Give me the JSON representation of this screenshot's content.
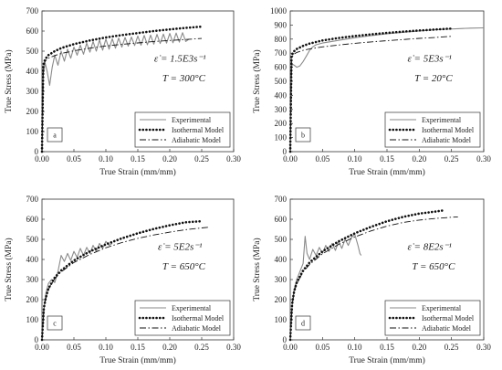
{
  "chart_data": [
    {
      "type": "line",
      "panel": "a",
      "xlabel": "True Strain (mm/mm)",
      "ylabel": "True Stress (MPa)",
      "xlim": [
        0,
        0.3
      ],
      "ylim": [
        0,
        700
      ],
      "xticks": [
        0,
        0.05,
        0.1,
        0.15,
        0.2,
        0.25,
        0.3
      ],
      "yticks": [
        0,
        100,
        200,
        300,
        400,
        500,
        600,
        700
      ],
      "xtick_labels": [
        "0.00",
        "0.05",
        "0.10",
        "0.15",
        "0.20",
        "0.25",
        "0.30"
      ],
      "ytick_labels": [
        "0",
        "100",
        "200",
        "300",
        "400",
        "500",
        "600",
        "700"
      ],
      "annotation_rate": "ε̇ = 1.5E3s⁻¹",
      "annotation_temp": "T = 300°C",
      "legend_position": "bottom-right",
      "series": [
        {
          "name": "Experimental",
          "style": "solid-gray",
          "x": [
            0,
            0.002,
            0.005,
            0.008,
            0.012,
            0.016,
            0.02,
            0.025,
            0.03,
            0.035,
            0.04,
            0.045,
            0.05,
            0.055,
            0.06,
            0.065,
            0.07,
            0.075,
            0.08,
            0.085,
            0.09,
            0.095,
            0.1,
            0.105,
            0.11,
            0.115,
            0.12,
            0.125,
            0.13,
            0.135,
            0.14,
            0.145,
            0.15,
            0.155,
            0.16,
            0.165,
            0.17,
            0.175,
            0.18,
            0.185,
            0.19,
            0.195,
            0.2,
            0.205,
            0.21,
            0.215,
            0.22,
            0.225,
            0.23
          ],
          "y": [
            0,
            390,
            440,
            400,
            330,
            420,
            480,
            430,
            500,
            450,
            510,
            465,
            520,
            480,
            530,
            485,
            540,
            495,
            548,
            500,
            555,
            505,
            560,
            510,
            562,
            515,
            565,
            520,
            568,
            525,
            570,
            528,
            575,
            530,
            578,
            532,
            580,
            535,
            583,
            538,
            585,
            540,
            588,
            542,
            590,
            545,
            592,
            548,
            560
          ]
        },
        {
          "name": "Isothermal Model",
          "style": "dotted",
          "x": [
            0,
            0.002,
            0.005,
            0.01,
            0.02,
            0.03,
            0.05,
            0.075,
            0.1,
            0.125,
            0.15,
            0.175,
            0.2,
            0.225,
            0.25
          ],
          "y": [
            0,
            430,
            460,
            480,
            500,
            515,
            535,
            553,
            568,
            580,
            590,
            600,
            608,
            616,
            622
          ]
        },
        {
          "name": "Adiabatic Model",
          "style": "dashdot",
          "x": [
            0,
            0.002,
            0.005,
            0.01,
            0.02,
            0.03,
            0.05,
            0.075,
            0.1,
            0.125,
            0.15,
            0.175,
            0.2,
            0.225,
            0.25
          ],
          "y": [
            0,
            425,
            450,
            465,
            478,
            488,
            502,
            515,
            526,
            534,
            541,
            548,
            553,
            558,
            563
          ]
        }
      ]
    },
    {
      "type": "line",
      "panel": "b",
      "xlabel": "True Strain (mm/mm)",
      "ylabel": "True Stress (MPa)",
      "xlim": [
        0,
        0.3
      ],
      "ylim": [
        0,
        1000
      ],
      "xticks": [
        0,
        0.05,
        0.1,
        0.15,
        0.2,
        0.25,
        0.3
      ],
      "yticks": [
        0,
        100,
        200,
        300,
        400,
        500,
        600,
        700,
        800,
        900,
        1000
      ],
      "xtick_labels": [
        "0.00",
        "0.05",
        "0.10",
        "0.15",
        "0.20",
        "0.25",
        "0.30"
      ],
      "ytick_labels": [
        "0",
        "100",
        "200",
        "300",
        "400",
        "500",
        "600",
        "700",
        "800",
        "900",
        "1000"
      ],
      "annotation_rate": "ε̇ = 5E3s⁻¹",
      "annotation_temp": "T = 20°C",
      "legend_position": "bottom-right",
      "series": [
        {
          "name": "Experimental",
          "style": "solid-gray",
          "x": [
            0,
            0.002,
            0.004,
            0.006,
            0.01,
            0.015,
            0.02,
            0.025,
            0.03,
            0.035,
            0.04,
            0.05,
            0.06,
            0.08,
            0.1,
            0.12,
            0.15,
            0.18,
            0.2,
            0.22,
            0.24,
            0.26,
            0.28,
            0.3
          ],
          "y": [
            0,
            610,
            620,
            615,
            600,
            610,
            640,
            680,
            720,
            745,
            760,
            772,
            780,
            795,
            810,
            822,
            838,
            850,
            858,
            865,
            870,
            874,
            878,
            880
          ]
        },
        {
          "name": "Isothermal Model",
          "style": "dotted",
          "x": [
            0,
            0.002,
            0.005,
            0.01,
            0.02,
            0.03,
            0.05,
            0.075,
            0.1,
            0.125,
            0.15,
            0.175,
            0.2,
            0.225,
            0.25
          ],
          "y": [
            0,
            680,
            710,
            730,
            752,
            768,
            790,
            808,
            822,
            834,
            844,
            853,
            861,
            868,
            875
          ]
        },
        {
          "name": "Adiabatic Model",
          "style": "dashdot",
          "x": [
            0,
            0.002,
            0.005,
            0.01,
            0.02,
            0.03,
            0.05,
            0.075,
            0.1,
            0.125,
            0.15,
            0.175,
            0.2,
            0.225,
            0.25
          ],
          "y": [
            0,
            660,
            690,
            705,
            720,
            730,
            745,
            758,
            770,
            780,
            789,
            797,
            805,
            812,
            820
          ]
        }
      ]
    },
    {
      "type": "line",
      "panel": "c",
      "xlabel": "True Strain (mm/mm)",
      "ylabel": "True Stress (MPa)",
      "xlim": [
        0,
        0.3
      ],
      "ylim": [
        0,
        700
      ],
      "xticks": [
        0,
        0.05,
        0.1,
        0.15,
        0.2,
        0.25,
        0.3
      ],
      "yticks": [
        0,
        100,
        200,
        300,
        400,
        500,
        600,
        700
      ],
      "xtick_labels": [
        "0.00",
        "0.05",
        "0.10",
        "0.15",
        "0.20",
        "0.25",
        "0.30"
      ],
      "ytick_labels": [
        "0",
        "100",
        "200",
        "300",
        "400",
        "500",
        "600",
        "700"
      ],
      "annotation_rate": "ε̇ = 5E2s⁻¹",
      "annotation_temp": "T = 650°C",
      "legend_position": "bottom-right",
      "series": [
        {
          "name": "Experimental",
          "style": "solid-gray",
          "x": [
            0,
            0.003,
            0.006,
            0.01,
            0.015,
            0.02,
            0.025,
            0.03,
            0.035,
            0.04,
            0.045,
            0.05,
            0.055,
            0.06,
            0.065,
            0.07,
            0.075,
            0.08,
            0.085,
            0.09,
            0.095,
            0.1,
            0.105,
            0.11
          ],
          "y": [
            0,
            150,
            230,
            280,
            300,
            285,
            340,
            420,
            390,
            430,
            395,
            440,
            410,
            455,
            420,
            460,
            430,
            470,
            440,
            480,
            455,
            490,
            470,
            480
          ]
        },
        {
          "name": "Isothermal Model",
          "style": "dotted",
          "x": [
            0,
            0.003,
            0.006,
            0.01,
            0.02,
            0.03,
            0.05,
            0.075,
            0.1,
            0.125,
            0.15,
            0.175,
            0.2,
            0.225,
            0.25
          ],
          "y": [
            0,
            160,
            210,
            255,
            310,
            345,
            395,
            440,
            475,
            505,
            530,
            552,
            570,
            585,
            590
          ]
        },
        {
          "name": "Adiabatic Model",
          "style": "dashdot",
          "x": [
            0,
            0.003,
            0.006,
            0.01,
            0.02,
            0.03,
            0.05,
            0.075,
            0.1,
            0.125,
            0.15,
            0.175,
            0.2,
            0.225,
            0.25,
            0.26
          ],
          "y": [
            0,
            155,
            205,
            250,
            305,
            338,
            385,
            425,
            458,
            484,
            505,
            522,
            536,
            548,
            557,
            560
          ]
        }
      ]
    },
    {
      "type": "line",
      "panel": "d",
      "xlabel": "True Strain (mm/mm)",
      "ylabel": "True Stress (MPa)",
      "xlim": [
        0,
        0.3
      ],
      "ylim": [
        0,
        700
      ],
      "xticks": [
        0,
        0.05,
        0.1,
        0.15,
        0.2,
        0.25,
        0.3
      ],
      "yticks": [
        0,
        100,
        200,
        300,
        400,
        500,
        600,
        700
      ],
      "xtick_labels": [
        "0.00",
        "0.05",
        "0.10",
        "0.15",
        "0.20",
        "0.25",
        "0.30"
      ],
      "ytick_labels": [
        "0",
        "100",
        "200",
        "300",
        "400",
        "500",
        "600",
        "700"
      ],
      "annotation_rate": "ε̇ = 8E2s⁻¹",
      "annotation_temp": "T = 650°C",
      "legend_position": "bottom-right",
      "series": [
        {
          "name": "Experimental",
          "style": "solid-gray",
          "x": [
            0,
            0.003,
            0.006,
            0.01,
            0.015,
            0.02,
            0.023,
            0.026,
            0.03,
            0.035,
            0.04,
            0.045,
            0.05,
            0.055,
            0.06,
            0.065,
            0.07,
            0.075,
            0.08,
            0.085,
            0.09,
            0.095,
            0.1,
            0.105,
            0.108,
            0.11
          ],
          "y": [
            0,
            170,
            250,
            300,
            340,
            380,
            515,
            430,
            400,
            450,
            420,
            460,
            430,
            470,
            440,
            480,
            445,
            490,
            455,
            500,
            470,
            510,
            525,
            470,
            430,
            420
          ]
        },
        {
          "name": "Isothermal Model",
          "style": "dotted",
          "x": [
            0,
            0.003,
            0.006,
            0.01,
            0.02,
            0.03,
            0.05,
            0.075,
            0.1,
            0.125,
            0.15,
            0.175,
            0.2,
            0.225,
            0.24
          ],
          "y": [
            0,
            180,
            240,
            285,
            345,
            385,
            440,
            490,
            530,
            562,
            590,
            612,
            628,
            638,
            645
          ]
        },
        {
          "name": "Adiabatic Model",
          "style": "dashdot",
          "x": [
            0,
            0.003,
            0.006,
            0.01,
            0.02,
            0.03,
            0.05,
            0.075,
            0.1,
            0.125,
            0.15,
            0.175,
            0.2,
            0.225,
            0.25,
            0.26
          ],
          "y": [
            0,
            175,
            235,
            280,
            338,
            375,
            428,
            475,
            512,
            542,
            566,
            584,
            596,
            604,
            610,
            612
          ]
        }
      ]
    }
  ]
}
